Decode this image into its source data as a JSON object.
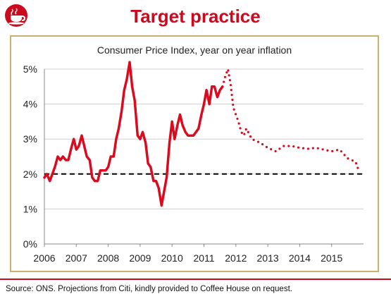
{
  "header": {
    "title": "Target practice",
    "logo_icon": "coffee-cup-icon",
    "accent_color": "#cc0a1e"
  },
  "source": "Source: ONS. Projections from Citi, kindly provided to Coffee House on request.",
  "chart_data": {
    "type": "line",
    "title": "Consumer Price Index, year on year inflation",
    "xlabel": "",
    "ylabel": "",
    "xlim": [
      2006,
      2016
    ],
    "ylim": [
      0,
      5
    ],
    "x_ticks": [
      2006,
      2007,
      2008,
      2009,
      2010,
      2011,
      2012,
      2013,
      2014,
      2015
    ],
    "y_ticks": [
      0,
      1,
      2,
      3,
      4,
      5
    ],
    "y_tick_labels": [
      "0%",
      "1%",
      "2%",
      "3%",
      "4%",
      "5%"
    ],
    "grid": true,
    "legend": "none",
    "reference_line": {
      "y": 2,
      "style": "dashed",
      "color": "#000000"
    },
    "series": [
      {
        "style": "solid",
        "color": "#dc0a1e",
        "x": [
          2006.0,
          2006.08,
          2006.17,
          2006.25,
          2006.33,
          2006.42,
          2006.5,
          2006.58,
          2006.67,
          2006.75,
          2006.83,
          2006.92,
          2007.0,
          2007.08,
          2007.17,
          2007.25,
          2007.33,
          2007.42,
          2007.5,
          2007.58,
          2007.67,
          2007.75,
          2007.83,
          2007.92,
          2008.0,
          2008.08,
          2008.17,
          2008.25,
          2008.33,
          2008.42,
          2008.5,
          2008.58,
          2008.67,
          2008.75,
          2008.83,
          2008.92,
          2009.0,
          2009.08,
          2009.17,
          2009.25,
          2009.33,
          2009.42,
          2009.5,
          2009.58,
          2009.67,
          2009.75,
          2009.83,
          2009.92,
          2010.0,
          2010.08,
          2010.17,
          2010.25,
          2010.33,
          2010.42,
          2010.5,
          2010.58,
          2010.67,
          2010.75,
          2010.83,
          2010.92,
          2011.0,
          2011.08,
          2011.17,
          2011.25,
          2011.33,
          2011.42,
          2011.5,
          2011.58
        ],
        "values": [
          1.9,
          2.0,
          1.8,
          2.0,
          2.2,
          2.5,
          2.4,
          2.5,
          2.4,
          2.4,
          2.7,
          3.0,
          2.7,
          2.8,
          3.1,
          2.8,
          2.5,
          2.4,
          1.9,
          1.8,
          1.8,
          2.1,
          2.1,
          2.1,
          2.2,
          2.5,
          2.5,
          3.0,
          3.3,
          3.8,
          4.4,
          4.7,
          5.2,
          4.5,
          4.1,
          3.1,
          3.0,
          3.2,
          2.9,
          2.3,
          2.2,
          1.8,
          1.8,
          1.6,
          1.1,
          1.5,
          1.9,
          2.9,
          3.5,
          3.0,
          3.4,
          3.7,
          3.4,
          3.2,
          3.1,
          3.1,
          3.1,
          3.2,
          3.3,
          3.7,
          4.0,
          4.4,
          4.0,
          4.5,
          4.5,
          4.2,
          4.4,
          4.5
        ]
      },
      {
        "style": "dotted",
        "color": "#dc0a1e",
        "x": [
          2011.58,
          2011.67,
          2011.75,
          2011.83,
          2011.92,
          2012.0,
          2012.08,
          2012.17,
          2012.25,
          2012.33,
          2012.5,
          2012.75,
          2013.0,
          2013.25,
          2013.5,
          2013.75,
          2014.0,
          2014.25,
          2014.5,
          2014.75,
          2015.0,
          2015.25,
          2015.5,
          2015.75,
          2015.83
        ],
        "values": [
          4.5,
          4.8,
          5.0,
          4.6,
          3.9,
          3.7,
          3.5,
          3.2,
          3.1,
          3.3,
          3.0,
          2.9,
          2.75,
          2.65,
          2.8,
          2.8,
          2.75,
          2.72,
          2.75,
          2.7,
          2.65,
          2.7,
          2.45,
          2.35,
          2.15
        ]
      }
    ]
  }
}
